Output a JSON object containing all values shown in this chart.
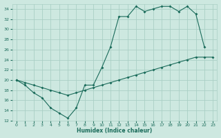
{
  "xlabel": "Humidex (Indice chaleur)",
  "bg_color": "#cde8e0",
  "grid_color": "#aacfc5",
  "line_color": "#1a6b5a",
  "curve1_x": [
    0,
    1,
    2,
    3,
    4,
    5,
    6,
    7,
    8,
    9,
    10,
    11,
    12,
    13,
    14,
    15,
    16,
    17,
    18,
    19,
    20,
    21,
    22
  ],
  "curve1_y": [
    20.0,
    19.0,
    17.5,
    16.5,
    14.5,
    13.5,
    12.5,
    14.5,
    19.0,
    19.0,
    22.5,
    26.5,
    32.5,
    32.5,
    34.5,
    33.5,
    34.0,
    34.5,
    34.5,
    33.5,
    34.5,
    33.0,
    26.5
  ],
  "curve2_x": [
    0,
    1,
    2,
    3,
    4,
    5,
    6,
    7,
    8,
    9,
    10,
    11,
    12,
    13,
    14,
    15,
    16,
    17,
    18,
    19,
    20,
    21,
    22,
    23
  ],
  "curve2_y": [
    20.0,
    19.5,
    19.0,
    18.5,
    18.0,
    17.5,
    17.0,
    17.5,
    18.0,
    18.5,
    19.0,
    19.5,
    20.0,
    20.5,
    21.0,
    21.5,
    22.0,
    22.5,
    23.0,
    23.5,
    24.0,
    24.5,
    24.5,
    24.5
  ],
  "ylim": [
    12,
    35
  ],
  "xlim": [
    -0.5,
    23.5
  ],
  "yticks": [
    12,
    14,
    16,
    18,
    20,
    22,
    24,
    26,
    28,
    30,
    32,
    34
  ],
  "xticks": [
    0,
    1,
    2,
    3,
    4,
    5,
    6,
    7,
    8,
    9,
    10,
    11,
    12,
    13,
    14,
    15,
    16,
    17,
    18,
    19,
    20,
    21,
    22,
    23
  ]
}
